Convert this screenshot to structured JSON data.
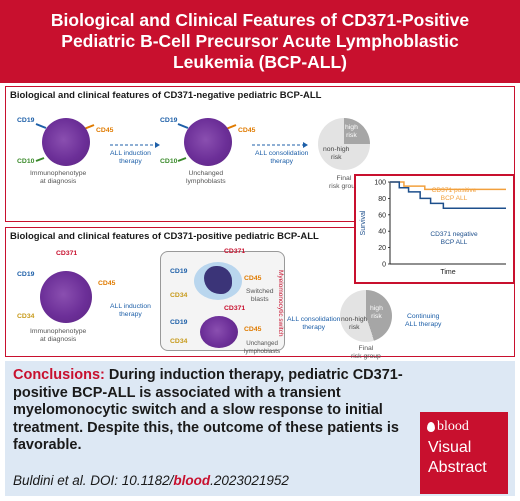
{
  "title": "Biological and Clinical Features of CD371-Positive Pediatric B-Cell Precursor Acute Lymphoblastic Leukemia (BCP-ALL)",
  "top_panel": {
    "title": "Biological and clinical features of CD371-negative pediatric BCP-ALL",
    "markers": {
      "cd19": "CD19",
      "cd45": "CD45",
      "cd10": "CD10"
    },
    "diagnosis_label": "Immunophenotype\nat diagnosis",
    "induction_label": "ALL induction\ntherapy",
    "unchanged_label": "Unchanged\nlymphoblasts",
    "consolidation_label": "ALL consolidation\ntherapy",
    "pie": {
      "high": "high\nrisk",
      "non_high": "non-high\nrisk",
      "caption": "Final\nrisk group",
      "high_fraction": 0.25
    }
  },
  "bottom_panel": {
    "title": "Biological and clinical features of CD371-positive pediatric BCP-ALL",
    "markers": {
      "cd19": "CD19",
      "cd45": "CD45",
      "cd371": "CD371",
      "cd34": "CD34"
    },
    "diagnosis_label": "Immunophenotype\nat diagnosis",
    "induction_label": "ALL induction\ntherapy",
    "switched_label": "Switched\nblasts",
    "unchanged_label": "Unchanged\nlymphoblasts",
    "switch_label": "Myelomonocytic switch",
    "consolidation_label": "ALL consolidation\ntherapy",
    "continuing_label": "Continuing\nALL therapy",
    "pie": {
      "high": "high\nrisk",
      "non_high": "non-high\nrisk",
      "caption": "Final\nrisk group",
      "high_fraction": 0.45
    }
  },
  "chart_data": {
    "type": "line",
    "xlabel": "Time",
    "ylabel": "Survival",
    "yticks": [
      0,
      20,
      40,
      60,
      80,
      100
    ],
    "ylim": [
      0,
      100
    ],
    "xlim": [
      0,
      10
    ],
    "series": [
      {
        "name": "CD371 positive\nBCP ALL",
        "color": "#f2a03d",
        "x": [
          0,
          1.2,
          1.2,
          3,
          3,
          10
        ],
        "y": [
          100,
          100,
          95,
          95,
          91,
          91
        ]
      },
      {
        "name": "CD371 negative\nBCP ALL",
        "color": "#1d4f8c",
        "x": [
          0,
          0.8,
          0.8,
          1.6,
          1.6,
          2.6,
          2.6,
          3.5,
          3.5,
          4.6,
          4.6,
          10
        ],
        "y": [
          100,
          100,
          93,
          93,
          88,
          88,
          80,
          80,
          74,
          74,
          68,
          68
        ]
      }
    ]
  },
  "conclusions": {
    "head": "Conclusions:",
    "text": " During induction therapy, pediatric CD371-positive BCP-ALL is associated with a transient myelomonocytic switch and a slow response to initial treatment. Despite this, the outcome of these patients is favorable."
  },
  "citation": {
    "prefix": "Buldini et al. DOI: 10.1182/",
    "journal": "blood",
    "suffix": ".2023021952"
  },
  "badge": {
    "brand": "blood",
    "line1": "Visual",
    "line2": "Abstract"
  },
  "colors": {
    "accent": "#c8102e",
    "cell": "#6c2f98",
    "arrow": "#1d5fa8",
    "concl_bg": "#dde8f4"
  }
}
